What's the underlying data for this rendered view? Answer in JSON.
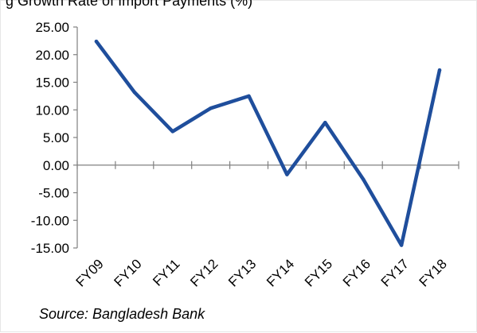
{
  "title_partial": "g Growth Rate of Import Payments (%)",
  "source": "Source: Bangladesh Bank",
  "chart_data": {
    "type": "line",
    "title": "",
    "xlabel": "",
    "ylabel": "",
    "categories": [
      "FY09",
      "FY10",
      "FY11",
      "FY12",
      "FY13",
      "FY14",
      "FY15",
      "FY16",
      "FY17",
      "FY18"
    ],
    "series": [
      {
        "values": [
          22.4,
          13.2,
          6.1,
          10.3,
          12.5,
          -1.7,
          7.7,
          -2.6,
          -14.5,
          17.2
        ]
      }
    ],
    "ylim": [
      -15.0,
      25.0
    ],
    "yticks": [
      25.0,
      20.0,
      15.0,
      10.0,
      5.0,
      0.0,
      -5.0,
      -10.0,
      -15.0
    ],
    "ytick_labels": [
      "25.00",
      "20.00",
      "15.00",
      "10.00",
      "5.00",
      "0.00",
      "-5.00",
      "-10.00",
      "-15.00"
    ],
    "line_color": "#1f4e9c",
    "grid": false,
    "legend": "none"
  }
}
